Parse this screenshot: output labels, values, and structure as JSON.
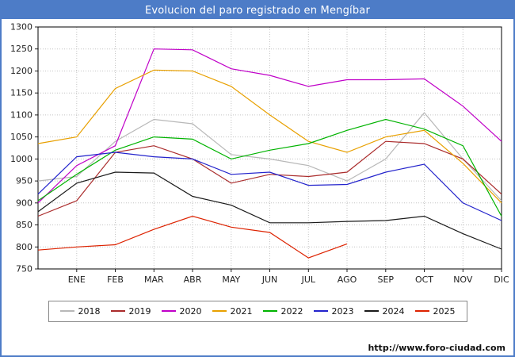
{
  "title_bar": {
    "text": "Evolucion del paro registrado en Mengíbar",
    "bg_color": "#4d7cc7",
    "text_color": "#ffffff"
  },
  "footer": {
    "link": "http://www.foro-ciudad.com"
  },
  "chart_data": {
    "type": "line",
    "title": "Evolucion del paro registrado en Mengíbar",
    "xlabel": "",
    "ylabel": "",
    "ylim": [
      750,
      1300
    ],
    "y_ticks": [
      750,
      800,
      850,
      900,
      950,
      1000,
      1050,
      1100,
      1150,
      1200,
      1250,
      1300
    ],
    "categories": [
      "ENE",
      "FEB",
      "MAR",
      "ABR",
      "MAY",
      "JUN",
      "JUL",
      "AGO",
      "SEP",
      "OCT",
      "NOV",
      "DIC"
    ],
    "grid": true,
    "legend_position": "bottom",
    "series": [
      {
        "name": "2018",
        "color": "#b8b8b8",
        "edge_value": 950,
        "values": [
          960,
          1040,
          1090,
          1080,
          1010,
          1000,
          985,
          950,
          1000,
          1105,
          1000,
          905
        ]
      },
      {
        "name": "2019",
        "color": "#aa2b2b",
        "edge_value": 870,
        "values": [
          905,
          1015,
          1030,
          1000,
          945,
          965,
          960,
          970,
          1040,
          1035,
          1000,
          920
        ]
      },
      {
        "name": "2020",
        "color": "#c000c8",
        "edge_value": 900,
        "values": [
          985,
          1030,
          1250,
          1248,
          1205,
          1190,
          1165,
          1180,
          1180,
          1182,
          1120,
          1040
        ]
      },
      {
        "name": "2021",
        "color": "#e8a000",
        "edge_value": 1035,
        "values": [
          1050,
          1160,
          1202,
          1200,
          1165,
          1100,
          1040,
          1015,
          1050,
          1065,
          990,
          900
        ]
      },
      {
        "name": "2022",
        "color": "#00b300",
        "edge_value": 905,
        "values": [
          965,
          1020,
          1050,
          1045,
          1000,
          1020,
          1035,
          1065,
          1090,
          1068,
          1030,
          870
        ]
      },
      {
        "name": "2023",
        "color": "#2323cc",
        "edge_value": 920,
        "values": [
          1005,
          1015,
          1005,
          1000,
          965,
          970,
          940,
          942,
          970,
          988,
          900,
          860
        ]
      },
      {
        "name": "2024",
        "color": "#1a1a1a",
        "edge_value": 880,
        "values": [
          945,
          970,
          968,
          915,
          895,
          855,
          855,
          858,
          860,
          870,
          830,
          795
        ]
      },
      {
        "name": "2025",
        "color": "#dd2200",
        "edge_value": 793,
        "values": [
          800,
          805,
          840,
          870,
          845,
          833,
          775,
          807
        ]
      }
    ]
  }
}
